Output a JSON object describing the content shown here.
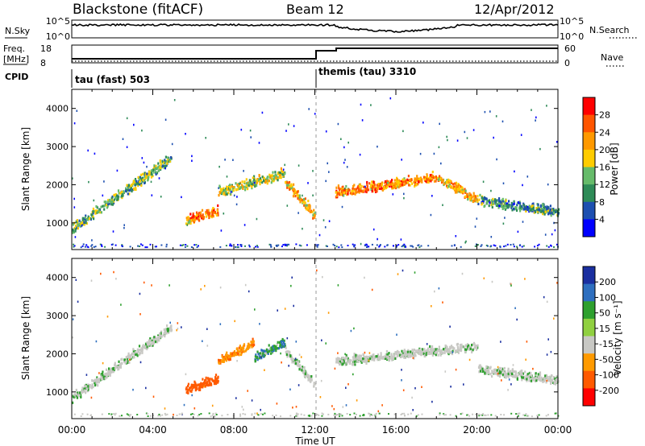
{
  "header": {
    "station": "Blackstone (fitACF)",
    "beam": "Beam 12",
    "date": "12/Apr/2012"
  },
  "noise_panel": {
    "left_label": "N.Sky",
    "right_label": "N.Search",
    "left_ticks": [
      "10^5",
      "10^0"
    ],
    "right_ticks": [
      "10^5",
      "10^0"
    ]
  },
  "freq_panel": {
    "left_label_line1": "Freq.",
    "left_label_line2": "[MHz]",
    "left_ticks": [
      "18",
      "8"
    ],
    "right_label": "Nave",
    "right_ticks": [
      "60",
      "0"
    ]
  },
  "cpid": {
    "label": "CPID",
    "segments": [
      {
        "name": "tau (fast) 503",
        "start_hour": 0
      },
      {
        "name": "themis (tau) 3310",
        "start_hour": 12
      }
    ]
  },
  "colors": {
    "power_scale": [
      "#0000ff",
      "#1d4fb0",
      "#2e8b57",
      "#66bb6a",
      "#ffcc00",
      "#ff9900",
      "#ff5500",
      "#ff0000"
    ],
    "velocity_scale": [
      "#ff0000",
      "#ff5a00",
      "#ff9a00",
      "#c8c8c4",
      "#90d040",
      "#2ea02e",
      "#2e6fbf",
      "#1a2fa0"
    ],
    "ground_scatter": "#c8c8c4"
  },
  "chart_data": [
    {
      "type": "heatmap",
      "title": "",
      "ylabel": "Slant Range [km]",
      "xlabel": "",
      "x_ticks": [
        "00:00",
        "04:00",
        "08:00",
        "12:00",
        "16:00",
        "20:00",
        "00:00"
      ],
      "x_hours": [
        0,
        4,
        8,
        12,
        16,
        20,
        24
      ],
      "y_ticks": [
        1000,
        2000,
        3000,
        4000
      ],
      "ylim": [
        300,
        4500
      ],
      "colorbar": {
        "label": "Power [dB]",
        "ticks": [
          "4",
          "8",
          "12",
          "16",
          "20",
          "24",
          "28"
        ],
        "range": [
          0,
          32
        ]
      },
      "bands": [
        {
          "t_start": 0.0,
          "t_end": 4.9,
          "r_start": 850,
          "r_end": 2700,
          "value": 14
        },
        {
          "t_start": 5.6,
          "t_end": 7.2,
          "r_start": 1050,
          "r_end": 1350,
          "value": 24
        },
        {
          "t_start": 7.2,
          "t_end": 10.5,
          "r_start": 1800,
          "r_end": 2300,
          "value": 18
        },
        {
          "t_start": 10.5,
          "t_end": 12.0,
          "r_start": 2100,
          "r_end": 1200,
          "value": 22
        },
        {
          "t_start": 13.0,
          "t_end": 18.0,
          "r_start": 1800,
          "r_end": 2200,
          "value": 24
        },
        {
          "t_start": 18.0,
          "t_end": 20.0,
          "r_start": 2200,
          "r_end": 1600,
          "value": 22
        },
        {
          "t_start": 20.0,
          "t_end": 24.0,
          "r_start": 1600,
          "r_end": 1300,
          "value": 12
        }
      ]
    },
    {
      "type": "heatmap",
      "title": "",
      "ylabel": "Slant Range [km]",
      "xlabel": "Time UT",
      "x_ticks": [
        "00:00",
        "04:00",
        "08:00",
        "12:00",
        "16:00",
        "20:00",
        "00:00"
      ],
      "x_hours": [
        0,
        4,
        8,
        12,
        16,
        20,
        24
      ],
      "y_ticks": [
        1000,
        2000,
        3000,
        4000
      ],
      "ylim": [
        300,
        4500
      ],
      "colorbar": {
        "label": "Velocity [m s⁻¹]",
        "ticks": [
          "200",
          "100",
          "50",
          "15",
          "-15",
          "-50",
          "-100",
          "-200"
        ],
        "range": [
          -250,
          250
        ]
      },
      "bands": [
        {
          "t_start": 0.0,
          "t_end": 4.9,
          "r_start": 850,
          "r_end": 2700,
          "value": 0
        },
        {
          "t_start": 5.6,
          "t_end": 7.2,
          "r_start": 1050,
          "r_end": 1350,
          "value": -150
        },
        {
          "t_start": 7.2,
          "t_end": 9.0,
          "r_start": 1800,
          "r_end": 2300,
          "value": -90
        },
        {
          "t_start": 9.0,
          "t_end": 10.5,
          "r_start": 1900,
          "r_end": 2300,
          "value": 40
        },
        {
          "t_start": 10.5,
          "t_end": 12.0,
          "r_start": 2100,
          "r_end": 1200,
          "value": 0
        },
        {
          "t_start": 13.0,
          "t_end": 20.0,
          "r_start": 1800,
          "r_end": 2200,
          "value": 0
        },
        {
          "t_start": 20.0,
          "t_end": 24.0,
          "r_start": 1600,
          "r_end": 1300,
          "value": 0
        }
      ]
    }
  ]
}
